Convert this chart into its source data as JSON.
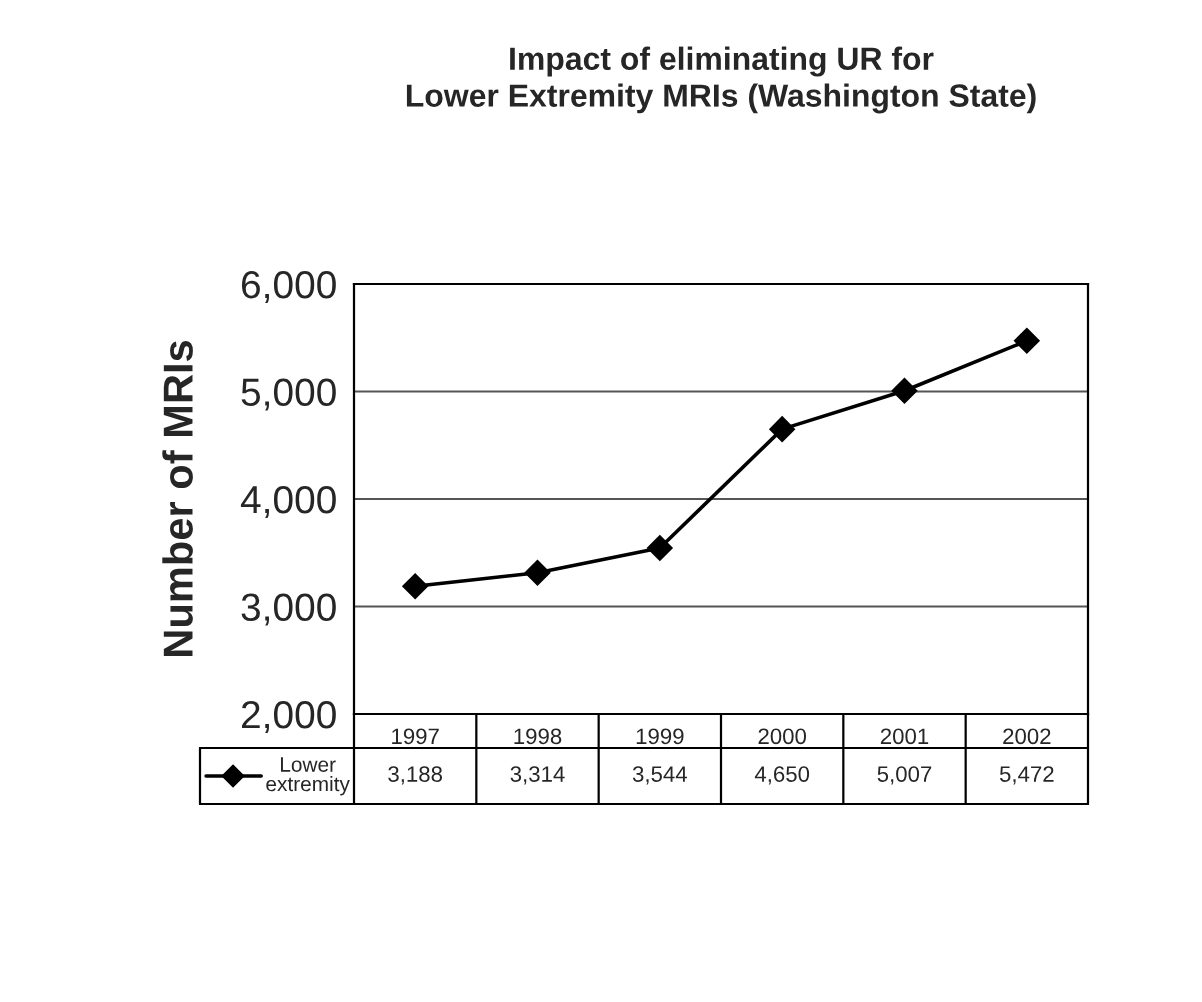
{
  "chart_data": {
    "type": "line",
    "title": "Impact of eliminating UR for\nLower Extremity MRIs (Washington State)",
    "ylabel": "Number of MRIs",
    "categories": [
      "1997",
      "1998",
      "1999",
      "2000",
      "2001",
      "2002"
    ],
    "series": [
      {
        "name": "Lower extremity",
        "color": "#000000",
        "values": [
          3188,
          3314,
          3544,
          4650,
          5007,
          5472
        ],
        "value_labels": [
          "3,188",
          "3,314",
          "3,544",
          "4,650",
          "5,007",
          "5,472"
        ]
      }
    ],
    "ylim": [
      2000,
      6000
    ],
    "yticks": [
      {
        "value": 2000,
        "label": "2,000"
      },
      {
        "value": 3000,
        "label": "3,000"
      },
      {
        "value": 4000,
        "label": "4,000"
      },
      {
        "value": 5000,
        "label": "5,000"
      },
      {
        "value": 6000,
        "label": "6,000"
      }
    ],
    "grid": "y",
    "marker": "diamond",
    "line_style": "solid",
    "legend": "bottom left"
  }
}
